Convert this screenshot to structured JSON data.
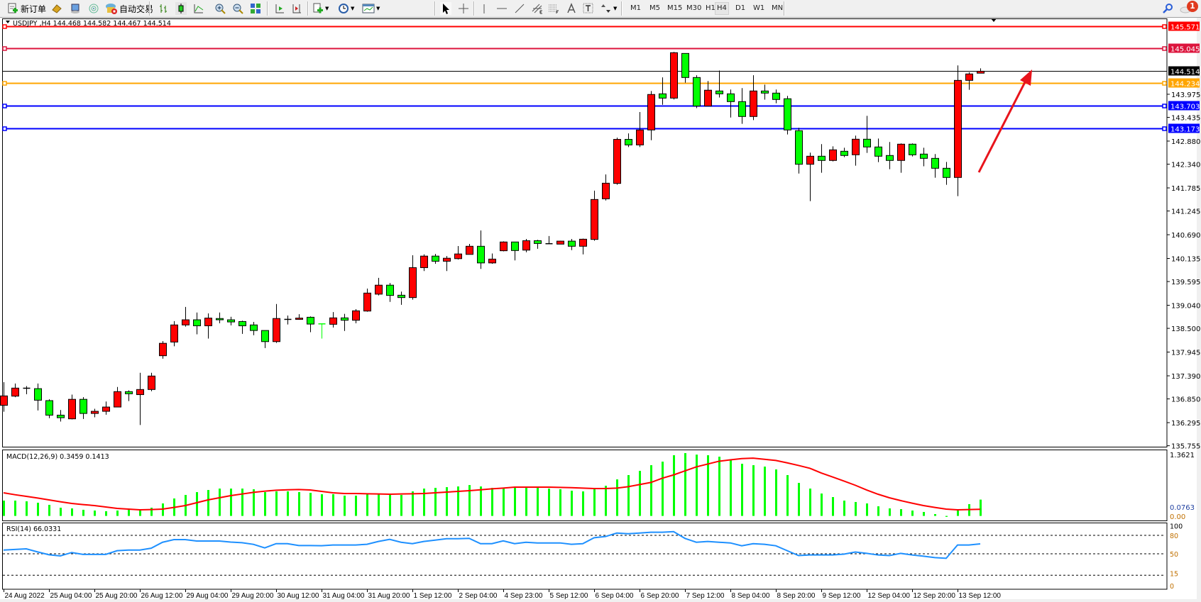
{
  "toolbar": {
    "new_order_label": "新订单",
    "auto_trading_label": "自动交易",
    "timeframes": [
      "M1",
      "M5",
      "M15",
      "M30",
      "H1",
      "H4",
      "D1",
      "W1",
      "MN"
    ],
    "active_timeframe": "H4",
    "notification_count": "1",
    "icons": [
      "new-order-icon",
      "market-watch-icon",
      "navigator-icon",
      "signals-icon",
      "auto-trading-icon",
      "bar-chart-icon",
      "candlestick-icon",
      "line-chart-icon",
      "zoom-in-icon",
      "zoom-out-icon",
      "tile-windows-icon",
      "auto-scroll-icon",
      "chart-shift-icon",
      "indicators-icon",
      "periods-icon",
      "templates-icon",
      "cursor-icon",
      "crosshair-icon",
      "vertical-line-icon",
      "horizontal-line-icon",
      "trendline-icon",
      "equidistant-channel-icon",
      "fibonacci-icon",
      "text-icon",
      "text-label-icon",
      "arrows-icon",
      "search-icon",
      "chat-icon"
    ]
  },
  "chart": {
    "title": "USDJPY ,H4  144.468 144.582 144.467 144.514",
    "macd_label": "MACD(12,26,9) 0.3459 0.1413",
    "rsi_label": "RSI(14) 66.0331",
    "colors": {
      "bull": "#ff0000",
      "bear": "#00ff00",
      "outline": "#000000",
      "macd_hist": "#00ff00",
      "macd_signal": "#ff0000",
      "rsi": "#1e90ff",
      "arrow": "#e8141c"
    }
  },
  "chart_data": {
    "type": "candlestick",
    "symbol": "USDJPY",
    "timeframe": "H4",
    "ohlc_format": [
      "open",
      "high",
      "low",
      "close"
    ],
    "candles": [
      [
        136.7,
        137.24,
        136.55,
        136.92
      ],
      [
        136.915,
        137.21,
        136.89,
        137.103
      ],
      [
        137.1,
        137.15,
        136.96,
        137.1
      ],
      [
        137.09,
        137.21,
        136.58,
        136.82
      ],
      [
        136.81,
        136.84,
        136.4,
        136.47
      ],
      [
        136.47,
        136.59,
        136.32,
        136.41
      ],
      [
        136.384,
        136.95,
        136.37,
        136.84
      ],
      [
        136.84,
        136.89,
        136.38,
        136.51
      ],
      [
        136.51,
        136.62,
        136.42,
        136.56
      ],
      [
        136.56,
        136.79,
        136.48,
        136.66
      ],
      [
        136.66,
        137.13,
        136.66,
        137.02
      ],
      [
        137.02,
        137.05,
        136.8,
        136.97
      ],
      [
        136.95,
        137.46,
        136.24,
        137.07
      ],
      [
        137.07,
        137.46,
        137.03,
        137.385
      ],
      [
        137.86,
        138.2,
        137.79,
        138.15
      ],
      [
        138.18,
        138.67,
        138.08,
        138.58
      ],
      [
        138.58,
        139.0,
        138.54,
        138.7
      ],
      [
        138.7,
        138.87,
        138.36,
        138.56
      ],
      [
        138.56,
        138.85,
        138.26,
        138.74
      ],
      [
        138.73,
        138.87,
        138.62,
        138.7
      ],
      [
        138.7,
        138.77,
        138.57,
        138.65
      ],
      [
        138.66,
        138.68,
        138.37,
        138.56
      ],
      [
        138.58,
        138.65,
        138.34,
        138.45
      ],
      [
        138.45,
        138.45,
        138.04,
        138.19
      ],
      [
        138.19,
        139.07,
        138.16,
        138.73
      ],
      [
        138.71,
        138.8,
        138.59,
        138.71
      ],
      [
        138.71,
        138.83,
        138.7,
        138.74
      ],
      [
        138.76,
        138.78,
        138.41,
        138.6
      ],
      [
        138.605,
        138.61,
        138.26,
        138.6
      ],
      [
        138.595,
        138.88,
        138.52,
        138.745
      ],
      [
        138.745,
        138.84,
        138.44,
        138.69
      ],
      [
        138.69,
        138.95,
        138.62,
        138.91
      ],
      [
        138.905,
        139.43,
        138.89,
        139.325
      ],
      [
        139.3,
        139.68,
        139.27,
        139.51
      ],
      [
        139.51,
        139.56,
        139.12,
        139.27
      ],
      [
        139.275,
        139.36,
        139.05,
        139.22
      ],
      [
        139.22,
        140.21,
        139.17,
        139.92
      ],
      [
        139.92,
        140.23,
        139.84,
        140.19
      ],
      [
        140.19,
        140.24,
        140.01,
        140.07
      ],
      [
        140.07,
        140.19,
        139.84,
        140.14
      ],
      [
        140.13,
        140.425,
        140.11,
        140.24
      ],
      [
        140.23,
        140.475,
        140.23,
        140.42
      ],
      [
        140.42,
        140.79,
        139.89,
        140.03
      ],
      [
        140.03,
        140.25,
        140.01,
        140.12
      ],
      [
        140.315,
        140.535,
        140.3,
        140.52
      ],
      [
        140.52,
        140.52,
        140.09,
        140.32
      ],
      [
        140.33,
        140.59,
        140.28,
        140.55
      ],
      [
        140.55,
        140.57,
        140.36,
        140.485
      ],
      [
        140.48,
        140.66,
        140.48,
        140.48
      ],
      [
        140.47,
        140.55,
        140.47,
        140.54
      ],
      [
        140.54,
        140.59,
        140.33,
        140.42
      ],
      [
        140.42,
        140.6,
        140.23,
        140.585
      ],
      [
        140.58,
        141.72,
        140.55,
        141.514
      ],
      [
        141.53,
        142.1,
        141.49,
        141.895
      ],
      [
        141.89,
        142.96,
        141.86,
        142.92
      ],
      [
        142.92,
        143.06,
        142.74,
        142.79
      ],
      [
        142.79,
        143.56,
        142.74,
        143.14
      ],
      [
        143.14,
        144.05,
        142.9,
        143.97
      ],
      [
        143.985,
        144.37,
        143.73,
        143.885
      ],
      [
        143.885,
        144.964,
        143.853,
        144.947
      ],
      [
        144.93,
        144.93,
        144.245,
        144.367
      ],
      [
        144.367,
        144.42,
        143.65,
        143.7
      ],
      [
        143.7,
        144.284,
        143.7,
        144.07
      ],
      [
        144.052,
        144.53,
        143.9,
        143.985
      ],
      [
        143.985,
        144.085,
        143.43,
        143.803
      ],
      [
        143.803,
        144.12,
        143.283,
        143.455
      ],
      [
        143.455,
        144.42,
        143.37,
        144.052
      ],
      [
        144.052,
        144.2,
        143.85,
        144.002
      ],
      [
        144.002,
        144.085,
        143.764,
        143.853
      ],
      [
        143.87,
        143.936,
        143.035,
        143.14
      ],
      [
        143.123,
        143.19,
        142.12,
        142.338
      ],
      [
        142.338,
        142.61,
        141.476,
        142.526
      ],
      [
        142.526,
        142.808,
        142.14,
        142.427
      ],
      [
        142.427,
        142.758,
        142.405,
        142.675
      ],
      [
        142.642,
        142.725,
        142.504,
        142.543
      ],
      [
        142.56,
        143.007,
        142.305,
        142.924
      ],
      [
        142.924,
        143.47,
        142.604,
        142.742
      ],
      [
        142.742,
        142.94,
        142.388,
        142.526
      ],
      [
        142.543,
        142.858,
        142.222,
        142.427
      ],
      [
        142.427,
        142.825,
        142.14,
        142.808
      ],
      [
        142.808,
        142.825,
        142.52,
        142.559
      ],
      [
        142.576,
        142.725,
        142.29,
        142.476
      ],
      [
        142.476,
        142.576,
        142.023,
        142.244
      ],
      [
        142.244,
        142.393,
        141.857,
        142.029
      ],
      [
        142.029,
        144.649,
        141.592,
        144.3
      ],
      [
        144.3,
        144.49,
        144.08,
        144.45
      ],
      [
        144.468,
        144.582,
        144.467,
        144.514
      ]
    ],
    "price_ticks": [
      "143.975",
      "143.435",
      "142.880",
      "142.340",
      "141.785",
      "141.245",
      "140.690",
      "140.135",
      "139.595",
      "139.040",
      "138.500",
      "137.945",
      "137.390",
      "136.850",
      "136.295",
      "135.755"
    ],
    "price_range": [
      135.755,
      145.571
    ],
    "levels": [
      {
        "price": "145.571",
        "color": "#ff0000"
      },
      {
        "price": "145.045",
        "color": "#dc143c"
      },
      {
        "price": "144.514",
        "color": "#000000"
      },
      {
        "price": "144.234",
        "color": "#ffa500"
      },
      {
        "price": "143.703",
        "color": "#0000ff"
      },
      {
        "price": "143.173",
        "color": "#0000ff"
      }
    ],
    "time_labels": [
      "24 Aug 2022",
      "25 Aug 04:00",
      "25 Aug 20:00",
      "26 Aug 12:00",
      "29 Aug 04:00",
      "29 Aug 20:00",
      "30 Aug 12:00",
      "31 Aug 04:00",
      "31 Aug 20:00",
      "1 Sep 12:00",
      "2 Sep 04:00",
      "4 Sep 23:00",
      "5 Sep 12:00",
      "6 Sep 04:00",
      "6 Sep 20:00",
      "7 Sep 12:00",
      "8 Sep 04:00",
      "8 Sep 20:00",
      "9 Sep 12:00",
      "12 Sep 04:00",
      "12 Sep 20:00",
      "13 Sep 12:00"
    ],
    "time_label_every_bars": 4,
    "macd": {
      "params": "12,26,9",
      "scale_top": "1.3621",
      "scale_zero": "0.00",
      "scale_bottom": "0.0763",
      "histogram": [
        0.325,
        0.325,
        0.31,
        0.28,
        0.235,
        0.174,
        0.16,
        0.13,
        0.114,
        0.1,
        0.114,
        0.13,
        0.13,
        0.174,
        0.265,
        0.37,
        0.445,
        0.505,
        0.55,
        0.58,
        0.58,
        0.58,
        0.565,
        0.505,
        0.52,
        0.52,
        0.505,
        0.49,
        0.46,
        0.46,
        0.43,
        0.43,
        0.46,
        0.46,
        0.475,
        0.445,
        0.52,
        0.58,
        0.595,
        0.61,
        0.625,
        0.655,
        0.625,
        0.595,
        0.595,
        0.595,
        0.595,
        0.595,
        0.58,
        0.565,
        0.535,
        0.52,
        0.565,
        0.64,
        0.775,
        0.866,
        0.956,
        1.076,
        1.151,
        1.287,
        1.332,
        1.3,
        1.287,
        1.256,
        1.181,
        1.106,
        1.076,
        1.046,
        0.986,
        0.866,
        0.7,
        0.58,
        0.475,
        0.4,
        0.325,
        0.295,
        0.265,
        0.204,
        0.16,
        0.144,
        0.114,
        0.084,
        0.039,
        -0.02,
        0.114,
        0.25,
        0.3459
      ],
      "signal": [
        0.49,
        0.45,
        0.415,
        0.38,
        0.34,
        0.3,
        0.265,
        0.24,
        0.22,
        0.19,
        0.16,
        0.145,
        0.13,
        0.135,
        0.145,
        0.18,
        0.22,
        0.28,
        0.34,
        0.385,
        0.43,
        0.465,
        0.5,
        0.525,
        0.545,
        0.555,
        0.56,
        0.55,
        0.52,
        0.49,
        0.475,
        0.475,
        0.47,
        0.465,
        0.46,
        0.465,
        0.47,
        0.475,
        0.49,
        0.505,
        0.52,
        0.535,
        0.555,
        0.575,
        0.59,
        0.61,
        0.61,
        0.61,
        0.61,
        0.605,
        0.6,
        0.59,
        0.58,
        0.58,
        0.59,
        0.62,
        0.665,
        0.71,
        0.8,
        0.87,
        0.955,
        1.04,
        1.1,
        1.16,
        1.19,
        1.216,
        1.226,
        1.2,
        1.176,
        1.126,
        1.07,
        1.01,
        0.91,
        0.825,
        0.74,
        0.65,
        0.55,
        0.46,
        0.385,
        0.325,
        0.27,
        0.22,
        0.18,
        0.144,
        0.13,
        0.135,
        0.1413
      ]
    },
    "rsi": {
      "period": 14,
      "levels": [
        "80",
        "50",
        "15"
      ],
      "scale_labels": [
        "100",
        "80",
        "50",
        "15",
        "0"
      ],
      "values": [
        56,
        57,
        58,
        53,
        48.4,
        46.5,
        52,
        49,
        49,
        49,
        55,
        56,
        56,
        59,
        68.7,
        73,
        73,
        70.7,
        70.7,
        70.7,
        69,
        68,
        65.3,
        59.5,
        66.4,
        66.4,
        63.4,
        63.4,
        63,
        64.2,
        64.2,
        64.2,
        65.4,
        70,
        73.4,
        68.7,
        66.4,
        70,
        72.2,
        74.5,
        74.5,
        75,
        66.4,
        66.4,
        71,
        66.4,
        68.7,
        67.6,
        67.6,
        67.6,
        65.4,
        66.4,
        76,
        78,
        83.7,
        82.6,
        83.7,
        85,
        85,
        86,
        75,
        68.7,
        70,
        68.7,
        67.6,
        63,
        66.4,
        65.4,
        63,
        55,
        47,
        48,
        48,
        48,
        49.4,
        52.8,
        50.6,
        48,
        47,
        50.6,
        48,
        46,
        43.7,
        42.6,
        64.2,
        64.2,
        66.03
      ]
    },
    "annotation": {
      "type": "arrow",
      "direction": "up-right",
      "color": "#e8141c"
    }
  }
}
